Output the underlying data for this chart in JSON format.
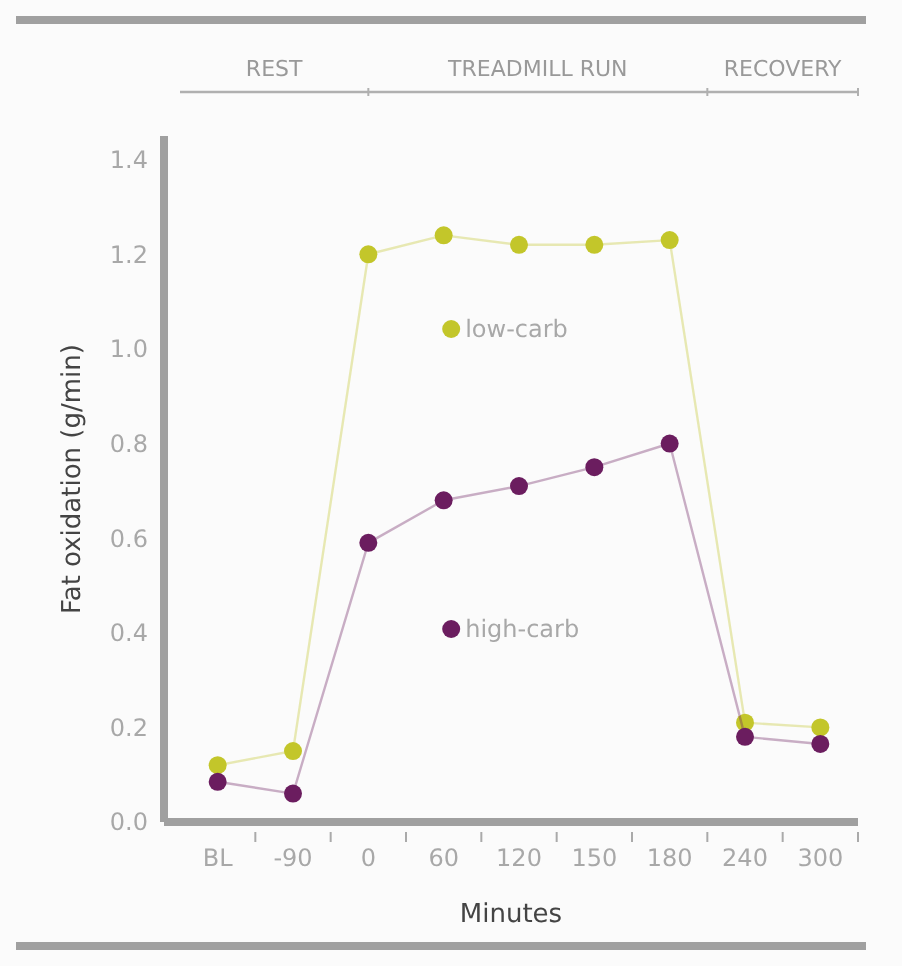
{
  "chart_data": {
    "type": "line",
    "xlabel": "Minutes",
    "ylabel": "Fat oxidation (g/min)",
    "categories": [
      "BL",
      "-90",
      "0",
      "60",
      "120",
      "150",
      "180",
      "240",
      "300"
    ],
    "series": [
      {
        "name": "low-carb",
        "color": "#c3c62a",
        "values": [
          0.12,
          0.15,
          1.2,
          1.24,
          1.22,
          1.22,
          1.23,
          0.21,
          0.2
        ]
      },
      {
        "name": "high-carb",
        "color": "#6b1d5f",
        "values": [
          0.085,
          0.06,
          0.59,
          0.68,
          0.71,
          0.75,
          0.8,
          0.18,
          0.165
        ]
      }
    ],
    "ylim": [
      0,
      1.45
    ],
    "yticks": [
      {
        "value": 0,
        "label": "0.0"
      },
      {
        "value": 0.2,
        "label": "0.2"
      },
      {
        "value": 0.4,
        "label": "0.4"
      },
      {
        "value": 0.6,
        "label": "0.6"
      },
      {
        "value": 0.8,
        "label": "0.8"
      },
      {
        "value": 1,
        "label": "1.0"
      },
      {
        "value": 1.2,
        "label": "1.2"
      },
      {
        "value": 1.4,
        "label": "1.4"
      }
    ],
    "annotations": [
      "REST",
      "TREADMILL RUN",
      "RECOVERY"
    ],
    "marker": "circle",
    "line_style": "solid",
    "grid": false,
    "legend": "center"
  }
}
